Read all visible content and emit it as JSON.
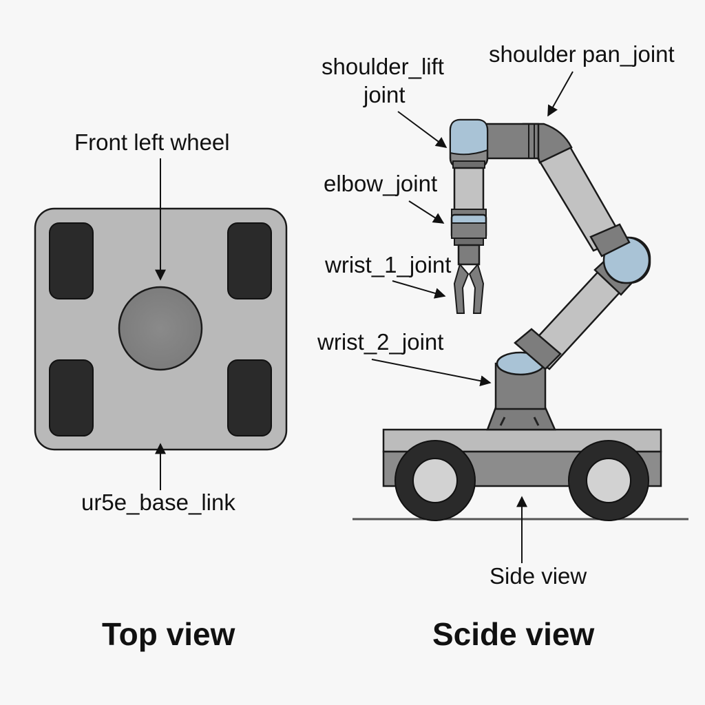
{
  "top_view": {
    "title": "Top view",
    "label_front_left_wheel": "Front left wheel",
    "label_base_link": "ur5e_base_link"
  },
  "side_view": {
    "title": "Scide view",
    "label_side_view": "Side view",
    "label_shoulder_lift_line1": "shoulder_lift",
    "label_shoulder_lift_line2": "joint",
    "label_shoulder_pan": "shoulder pan_joint",
    "label_elbow": "elbow_joint",
    "label_wrist_1": "wrist_1_joint",
    "label_wrist_2": "wrist_2_joint"
  },
  "colors": {
    "background": "#f7f7f7",
    "chassis_gray": "#b9b9b9",
    "dark_wheel": "#2a2a2a",
    "joint_blue": "#a9c3d6",
    "outline": "#1a1a1a"
  }
}
